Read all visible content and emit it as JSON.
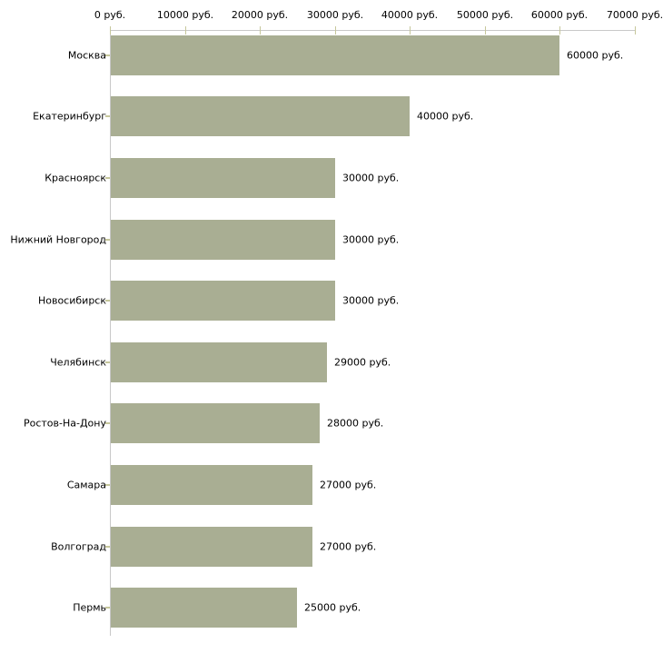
{
  "chart_data": {
    "type": "bar",
    "orientation": "horizontal",
    "categories": [
      "Москва",
      "Екатеринбург",
      "Красноярск",
      "Нижний Новгород",
      "Новосибирск",
      "Челябинск",
      "Ростов-На-Дону",
      "Самара",
      "Волгоград",
      "Пермь"
    ],
    "values": [
      60000,
      40000,
      30000,
      30000,
      30000,
      29000,
      28000,
      27000,
      27000,
      25000
    ],
    "value_labels": [
      "60000 руб.",
      "40000 руб.",
      "30000 руб.",
      "30000 руб.",
      "30000 руб.",
      "29000 руб.",
      "28000 руб.",
      "27000 руб.",
      "27000 руб.",
      "25000 руб."
    ],
    "x_axis": {
      "position": "top",
      "min": 0,
      "max": 70000,
      "tick_values": [
        0,
        10000,
        20000,
        30000,
        40000,
        50000,
        60000,
        70000
      ],
      "tick_labels": [
        "0 руб.",
        "10000 руб.",
        "20000 руб.",
        "30000 руб.",
        "40000 руб.",
        "50000 руб.",
        "60000 руб.",
        "70000 руб."
      ]
    },
    "grid": "off",
    "legend": "none",
    "colors": {
      "bar": "#a9ae93",
      "axis_line": "#c8c8c8",
      "tick_mark": "#c6c79b",
      "text": "#000000",
      "background": "#ffffff"
    }
  }
}
